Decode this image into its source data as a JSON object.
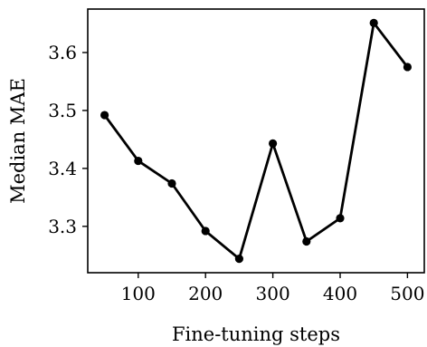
{
  "chart_data": {
    "type": "line",
    "title": "",
    "xlabel": "Fine-tuning steps",
    "ylabel": "Median MAE",
    "x": [
      50,
      100,
      150,
      200,
      250,
      300,
      350,
      400,
      450,
      500
    ],
    "series": [
      {
        "values": [
          3.492,
          3.413,
          3.374,
          3.292,
          3.244,
          3.443,
          3.274,
          3.314,
          3.651,
          3.575
        ]
      }
    ],
    "xlim": [
      25,
      525
    ],
    "ylim": [
      3.22,
      3.675
    ],
    "xticks": [
      100,
      200,
      300,
      400,
      500
    ],
    "xtick_labels": [
      "100",
      "200",
      "300",
      "400",
      "500"
    ],
    "yticks": [
      3.3,
      3.4,
      3.5,
      3.6
    ],
    "ytick_labels": [
      "3.3",
      "3.4",
      "3.5",
      "3.6"
    ],
    "grid": false,
    "legend": "none",
    "line_color": "#000000",
    "marker": "circle"
  }
}
